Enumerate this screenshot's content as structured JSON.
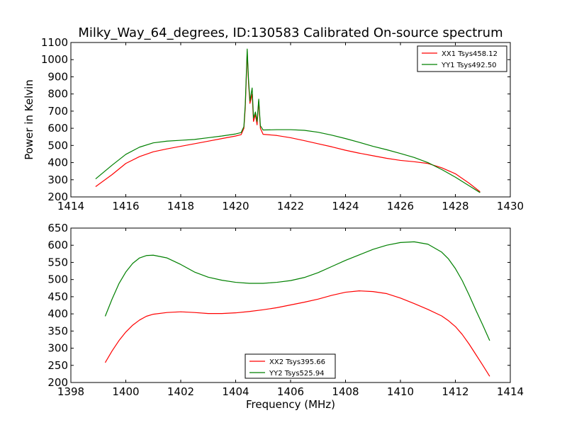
{
  "chart_data": [
    {
      "type": "line",
      "title": "Milky_Way_64_degrees, ID:130583 Calibrated On-source spectrum",
      "xlabel": "",
      "ylabel": "Power in Kelvin",
      "xlim": [
        1414,
        1430
      ],
      "ylim": [
        200,
        1100
      ],
      "xticks": [
        "1414",
        "1416",
        "1418",
        "1420",
        "1422",
        "1424",
        "1426",
        "1428",
        "1430"
      ],
      "yticks": [
        "200",
        "300",
        "400",
        "500",
        "600",
        "700",
        "800",
        "900",
        "1000",
        "1100"
      ],
      "legend": "top-right",
      "grid": false,
      "series": [
        {
          "name": "XX1 Tsys458.12",
          "color": "#ff0000",
          "x": [
            1414.9,
            1415.5,
            1416.0,
            1416.5,
            1417.0,
            1417.5,
            1418.0,
            1418.5,
            1419.0,
            1419.5,
            1420.0,
            1420.2,
            1420.3,
            1420.35,
            1420.42,
            1420.47,
            1420.52,
            1420.6,
            1420.65,
            1420.72,
            1420.78,
            1420.84,
            1420.9,
            1421.0,
            1421.5,
            1422.0,
            1422.5,
            1423.0,
            1423.5,
            1424.0,
            1424.5,
            1425.0,
            1425.5,
            1426.0,
            1426.5,
            1427.0,
            1427.5,
            1428.0,
            1428.5,
            1428.9
          ],
          "y": [
            260,
            330,
            395,
            435,
            463,
            480,
            495,
            510,
            525,
            540,
            555,
            563,
            600,
            720,
            1045,
            860,
            745,
            800,
            640,
            680,
            620,
            760,
            600,
            565,
            558,
            545,
            528,
            510,
            492,
            472,
            455,
            440,
            425,
            413,
            405,
            395,
            370,
            335,
            280,
            230
          ]
        },
        {
          "name": "YY1 Tsys492.50",
          "color": "#008000",
          "x": [
            1414.9,
            1415.5,
            1416.0,
            1416.5,
            1417.0,
            1417.5,
            1418.0,
            1418.5,
            1419.0,
            1419.5,
            1420.0,
            1420.2,
            1420.3,
            1420.35,
            1420.42,
            1420.47,
            1420.52,
            1420.6,
            1420.65,
            1420.72,
            1420.78,
            1420.84,
            1420.9,
            1421.0,
            1421.5,
            1422.0,
            1422.5,
            1423.0,
            1423.5,
            1424.0,
            1424.5,
            1425.0,
            1425.5,
            1426.0,
            1426.5,
            1427.0,
            1427.5,
            1428.0,
            1428.5,
            1428.9
          ],
          "y": [
            305,
            385,
            448,
            490,
            515,
            525,
            530,
            535,
            545,
            555,
            567,
            575,
            610,
            740,
            1062,
            880,
            760,
            835,
            660,
            695,
            640,
            770,
            615,
            590,
            592,
            592,
            588,
            577,
            560,
            540,
            518,
            495,
            475,
            453,
            430,
            400,
            360,
            315,
            265,
            225
          ]
        }
      ]
    },
    {
      "type": "line",
      "title": "",
      "xlabel": "Frequency (MHz)",
      "ylabel": "",
      "xlim": [
        1398,
        1414
      ],
      "ylim": [
        200,
        650
      ],
      "xticks": [
        "1398",
        "1400",
        "1402",
        "1404",
        "1406",
        "1408",
        "1410",
        "1412",
        "1414"
      ],
      "yticks": [
        "200",
        "250",
        "300",
        "350",
        "400",
        "450",
        "500",
        "550",
        "600",
        "650"
      ],
      "legend": "bottom-center",
      "grid": false,
      "series": [
        {
          "name": "XX2 Tsys395.66",
          "color": "#ff0000",
          "x": [
            1399.25,
            1399.5,
            1399.75,
            1400.0,
            1400.25,
            1400.5,
            1400.75,
            1401.0,
            1401.5,
            1402.0,
            1402.5,
            1403.0,
            1403.5,
            1404.0,
            1404.5,
            1405.0,
            1405.5,
            1406.0,
            1406.5,
            1407.0,
            1407.5,
            1408.0,
            1408.5,
            1409.0,
            1409.5,
            1410.0,
            1410.5,
            1411.0,
            1411.5,
            1411.75,
            1412.0,
            1412.25,
            1412.5,
            1412.75,
            1413.0,
            1413.25
          ],
          "y": [
            258,
            292,
            322,
            347,
            367,
            382,
            393,
            399,
            404,
            406,
            404,
            401,
            401,
            403,
            407,
            412,
            418,
            426,
            434,
            443,
            454,
            463,
            467,
            465,
            459,
            446,
            430,
            413,
            394,
            380,
            363,
            340,
            312,
            281,
            250,
            218
          ]
        },
        {
          "name": "YY2 Tsys525.94",
          "color": "#008000",
          "x": [
            1399.25,
            1399.5,
            1399.75,
            1400.0,
            1400.25,
            1400.5,
            1400.75,
            1401.0,
            1401.5,
            1402.0,
            1402.5,
            1403.0,
            1403.5,
            1404.0,
            1404.5,
            1405.0,
            1405.5,
            1406.0,
            1406.5,
            1407.0,
            1407.5,
            1408.0,
            1408.5,
            1409.0,
            1409.5,
            1410.0,
            1410.5,
            1411.0,
            1411.5,
            1411.75,
            1412.0,
            1412.25,
            1412.5,
            1412.75,
            1413.0,
            1413.25
          ],
          "y": [
            393,
            443,
            488,
            522,
            547,
            563,
            570,
            571,
            563,
            544,
            522,
            507,
            498,
            492,
            489,
            489,
            492,
            497,
            506,
            520,
            538,
            556,
            572,
            588,
            600,
            608,
            610,
            603,
            580,
            560,
            532,
            497,
            455,
            410,
            367,
            322
          ]
        }
      ]
    }
  ]
}
